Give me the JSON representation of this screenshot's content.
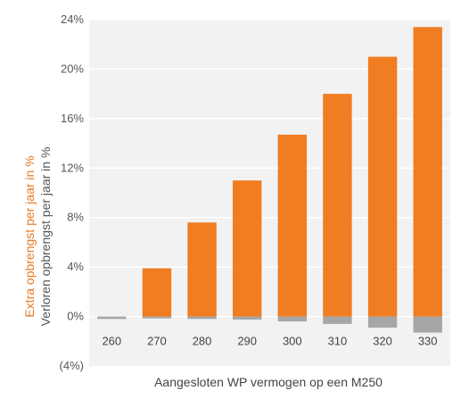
{
  "chart_data": {
    "type": "bar",
    "categories": [
      "260",
      "270",
      "280",
      "290",
      "300",
      "310",
      "320",
      "330"
    ],
    "series": [
      {
        "name": "Extra opbrengst per jaar in %",
        "values": [
          0,
          3.9,
          7.6,
          11.0,
          14.7,
          18.0,
          21.0,
          23.4
        ]
      },
      {
        "name": "Verloren opbrengst per jaar in %",
        "values": [
          -0.2,
          -0.15,
          -0.2,
          -0.25,
          -0.4,
          -0.6,
          -0.9,
          -1.3
        ]
      }
    ],
    "xlabel": "Aangesloten WP vermogen op een M250",
    "ylabel_extra": "Extra opbrengst per jaar in %",
    "ylabel_lost": "Verloren opbrengst per jaar in %",
    "ylim": [
      -4,
      24
    ],
    "yticks": [
      24,
      20,
      16,
      12,
      8,
      4,
      0,
      -4
    ],
    "ytick_labels": [
      "24%",
      "20%",
      "16%",
      "12%",
      "8%",
      "4%",
      "0%",
      "(4%)"
    ],
    "grid": true,
    "colors": {
      "extra": "#f07d22",
      "lost": "#a6a6a6",
      "plot_bg": "#f2f2f2",
      "grid": "#ffffff",
      "extra_label": "#e87a24",
      "lost_label": "#555555"
    }
  }
}
